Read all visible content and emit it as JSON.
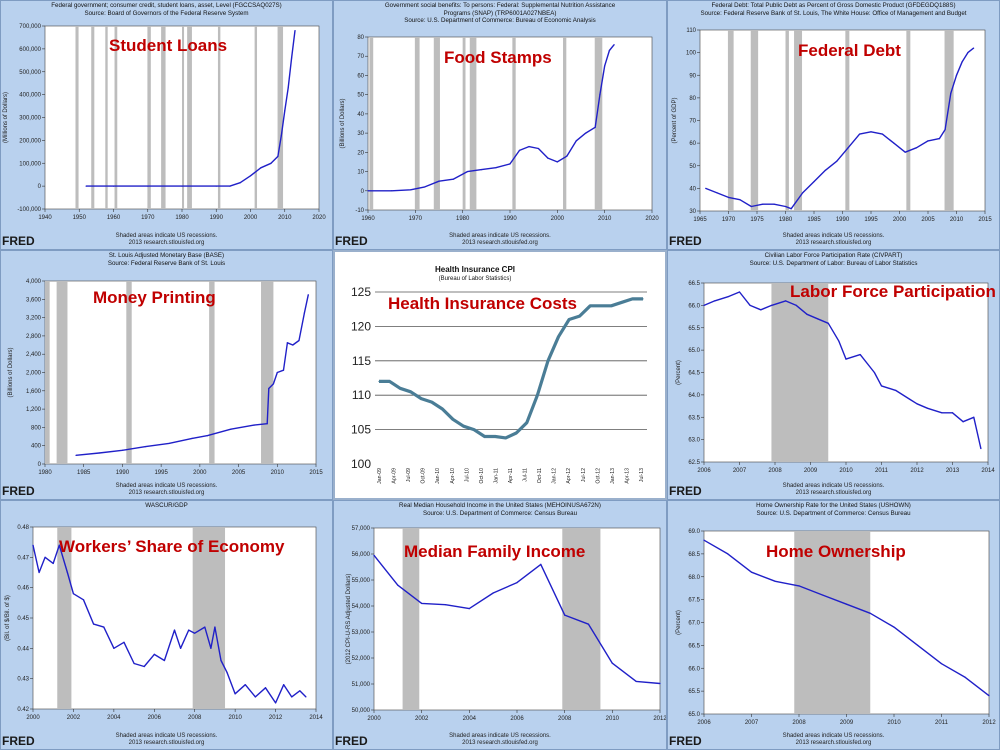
{
  "colors": {
    "line": "#2020c8",
    "plot_bg": "#ffffff",
    "shade": "#bdbdbd",
    "title": "#c00000",
    "hi_line": "#4a7d96"
  },
  "recession_note": "Shaded areas indicate US recessions.",
  "research_note": "2013 research.stlouisfed.org",
  "fred_logo": "FRED",
  "chart_data": [
    {
      "id": "student-loans",
      "type": "line",
      "overlay_title": "Student Loans",
      "header": [
        "Federal government; consumer credit, student loans, asset, Level (FGCCSAQ027S)",
        "Source: Board of Governors of the Federal Reserve System"
      ],
      "ylabel": "(Millions of Dollars)",
      "xlim": [
        1940,
        2020
      ],
      "ylim": [
        -100000,
        700000
      ],
      "xticks": [
        1940,
        1950,
        1960,
        1970,
        1980,
        1990,
        2000,
        2010,
        2020
      ],
      "xtick_labels": [
        "1940",
        "1950",
        "1960",
        "1970",
        "1980",
        "1990",
        "2000",
        "2010",
        "2020"
      ],
      "yticks": [
        -100000,
        0,
        100000,
        200000,
        300000,
        400000,
        500000,
        600000,
        700000
      ],
      "ytick_labels": [
        "-100,000",
        "0",
        "100,000",
        "200,000",
        "300,000",
        "400,000",
        "500,000",
        "600,000",
        "700,000"
      ],
      "recessions": [
        [
          1948.9,
          1949.8
        ],
        [
          1953.5,
          1954.4
        ],
        [
          1957.6,
          1958.3
        ],
        [
          1960.3,
          1961.1
        ],
        [
          1969.9,
          1970.9
        ],
        [
          1973.9,
          1975.2
        ],
        [
          1980.0,
          1980.6
        ],
        [
          1981.5,
          1982.9
        ],
        [
          1990.5,
          1991.2
        ],
        [
          2001.2,
          2001.9
        ],
        [
          2007.9,
          2009.5
        ]
      ],
      "x": [
        1952,
        1960,
        1970,
        1980,
        1990,
        1994,
        1997,
        2000,
        2003,
        2006,
        2008,
        2009,
        2010,
        2011,
        2012,
        2013
      ],
      "y": [
        0,
        0,
        0,
        0,
        0,
        0,
        15000,
        45000,
        80000,
        100000,
        130000,
        220000,
        330000,
        430000,
        560000,
        680000
      ]
    },
    {
      "id": "food-stamps",
      "type": "line",
      "overlay_title": "Food Stamps",
      "header": [
        "Government social benefits: To persons: Federal: Supplemental Nutrition Assistance",
        "Programs (SNAP) (TRP6001A027NBEA)",
        "Source: U.S. Department of Commerce: Bureau of Economic Analysis"
      ],
      "ylabel": "(Billions of Dollars)",
      "xlim": [
        1960,
        2020
      ],
      "ylim": [
        -10,
        80
      ],
      "xticks": [
        1960,
        1970,
        1980,
        1990,
        2000,
        2010,
        2020
      ],
      "xtick_labels": [
        "1960",
        "1970",
        "1980",
        "1990",
        "2000",
        "2010",
        "2020"
      ],
      "yticks": [
        -10,
        0,
        10,
        20,
        30,
        40,
        50,
        60,
        70,
        80
      ],
      "ytick_labels": [
        "-10",
        "0",
        "10",
        "20",
        "30",
        "40",
        "50",
        "60",
        "70",
        "80"
      ],
      "recessions": [
        [
          1960.3,
          1961.1
        ],
        [
          1969.9,
          1970.9
        ],
        [
          1973.9,
          1975.2
        ],
        [
          1980.0,
          1980.6
        ],
        [
          1981.5,
          1982.9
        ],
        [
          1990.5,
          1991.2
        ],
        [
          2001.2,
          2001.9
        ],
        [
          2007.9,
          2009.5
        ]
      ],
      "x": [
        1960,
        1965,
        1969,
        1972,
        1975,
        1978,
        1981,
        1984,
        1987,
        1990,
        1992,
        1994,
        1996,
        1998,
        2000,
        2002,
        2004,
        2006,
        2008,
        2009,
        2010,
        2011,
        2012
      ],
      "y": [
        0,
        0,
        0.5,
        2,
        5,
        6,
        10,
        11,
        12,
        14,
        21,
        23,
        22,
        17,
        15,
        18,
        26,
        30,
        33,
        50,
        65,
        73,
        76
      ]
    },
    {
      "id": "federal-debt",
      "type": "line",
      "overlay_title": "Federal Debt",
      "header": [
        "Federal Debt: Total Public Debt as Percent of Gross Domestic Product (GFDEGDQ188S)",
        "Source: Federal Reserve Bank of St. Louis, The White House: Office of Management and Budget"
      ],
      "ylabel": "(Percent of GDP)",
      "xlim": [
        1965,
        2015
      ],
      "ylim": [
        30,
        110
      ],
      "xticks": [
        1965,
        1970,
        1975,
        1980,
        1985,
        1990,
        1995,
        2000,
        2005,
        2010,
        2015
      ],
      "xtick_labels": [
        "1965",
        "1970",
        "1975",
        "1980",
        "1985",
        "1990",
        "1995",
        "2000",
        "2005",
        "2010",
        "2015"
      ],
      "yticks": [
        30,
        40,
        50,
        60,
        70,
        80,
        90,
        100,
        110
      ],
      "ytick_labels": [
        "30",
        "40",
        "50",
        "60",
        "70",
        "80",
        "90",
        "100",
        "110"
      ],
      "recessions": [
        [
          1969.9,
          1970.9
        ],
        [
          1973.9,
          1975.2
        ],
        [
          1980.0,
          1980.6
        ],
        [
          1981.5,
          1982.9
        ],
        [
          1990.5,
          1991.2
        ],
        [
          2001.2,
          2001.9
        ],
        [
          2007.9,
          2009.5
        ]
      ],
      "x": [
        1966,
        1968,
        1970,
        1972,
        1974,
        1976,
        1978,
        1980,
        1981,
        1983,
        1985,
        1987,
        1989,
        1991,
        1993,
        1995,
        1997,
        1999,
        2001,
        2003,
        2005,
        2007,
        2008,
        2009,
        2010,
        2011,
        2012,
        2013
      ],
      "y": [
        40,
        38,
        36,
        35,
        32,
        33,
        33,
        32,
        31,
        38,
        43,
        48,
        52,
        58,
        64,
        65,
        64,
        60,
        56,
        58,
        61,
        62,
        66,
        82,
        90,
        96,
        100,
        102
      ]
    },
    {
      "id": "money-printing",
      "type": "line",
      "overlay_title": "Money Printing",
      "header": [
        "St. Louis Adjusted Monetary Base (BASE)",
        "Source: Federal Reserve Bank of St. Louis"
      ],
      "ylabel": "(Billions of Dollars)",
      "xlim": [
        1980,
        2015
      ],
      "ylim": [
        0,
        4000
      ],
      "xticks": [
        1980,
        1985,
        1990,
        1995,
        2000,
        2005,
        2010,
        2015
      ],
      "xtick_labels": [
        "1980",
        "1985",
        "1990",
        "1995",
        "2000",
        "2005",
        "2010",
        "2015"
      ],
      "yticks": [
        0,
        400,
        800,
        1200,
        1600,
        2000,
        2400,
        2800,
        3200,
        3600,
        4000
      ],
      "ytick_labels": [
        "0",
        "400",
        "800",
        "1,200",
        "1,600",
        "2,000",
        "2,400",
        "2,800",
        "3,200",
        "3,600",
        "4,000"
      ],
      "recessions": [
        [
          1980.0,
          1980.6
        ],
        [
          1981.5,
          1982.9
        ],
        [
          1990.5,
          1991.2
        ],
        [
          2001.2,
          2001.9
        ],
        [
          2007.9,
          2009.5
        ]
      ],
      "x": [
        1984,
        1987,
        1990,
        1993,
        1996,
        1999,
        2001,
        2004,
        2007,
        2008.7,
        2008.9,
        2009.5,
        2010,
        2010.8,
        2011.3,
        2012,
        2012.8,
        2013.5,
        2014
      ],
      "y": [
        190,
        240,
        300,
        380,
        450,
        560,
        620,
        760,
        850,
        880,
        1650,
        1750,
        2000,
        2050,
        2650,
        2600,
        2700,
        3300,
        3700
      ]
    },
    {
      "id": "health-insurance",
      "type": "line",
      "overlay_title": "Health Insurance Costs",
      "header": [
        "Health Insurance CPI",
        "(Bureau of Labor Statistics)"
      ],
      "ylim": [
        100,
        125
      ],
      "xlim": [
        0,
        50
      ],
      "yticks": [
        100,
        105,
        110,
        115,
        120,
        125
      ],
      "ytick_labels": [
        "100",
        "105",
        "110",
        "115",
        "120",
        "125"
      ],
      "gridlines_at": [
        105,
        110,
        115,
        120,
        125
      ],
      "xticks": [
        0,
        3,
        6,
        9,
        12,
        15,
        18,
        21,
        24,
        27,
        30,
        33,
        36,
        39,
        42,
        45,
        48
      ],
      "xtick_labels": [
        "Jan-09",
        "Apr-09",
        "Jul-09",
        "Oct-09",
        "Jan-10",
        "Apr-10",
        "Jul-10",
        "Oct-10",
        "Jan-11",
        "Apr-11",
        "Jul-11",
        "Oct-11",
        "Jan-12",
        "Apr-12",
        "Jul-12",
        "Oct-12",
        "Jan-13"
      ],
      "xtick_labels_extra": [
        "Apr-13",
        "Jul-13"
      ],
      "x": [
        0,
        2,
        4,
        6,
        8,
        10,
        12,
        14,
        16,
        18,
        20,
        22,
        24,
        26,
        28,
        30,
        32,
        34,
        36,
        38,
        40,
        42,
        44,
        46,
        48,
        50
      ],
      "y": [
        112,
        112,
        111,
        110.5,
        109.5,
        109,
        108,
        106.5,
        105.5,
        105,
        104,
        104,
        103.8,
        104.5,
        106,
        110,
        115,
        118.5,
        121,
        121.5,
        123,
        123,
        123,
        123.5,
        124,
        124
      ]
    },
    {
      "id": "labor-force",
      "type": "line",
      "overlay_title": "Labor Force Participation",
      "header": [
        "Civilian Labor Force Participation Rate (CIVPART)",
        "Source: U.S. Department of Labor: Bureau of Labor Statistics"
      ],
      "ylabel": "(Percent)",
      "xlim": [
        2006,
        2014
      ],
      "ylim": [
        62.5,
        66.5
      ],
      "xticks": [
        2006,
        2007,
        2008,
        2009,
        2010,
        2011,
        2012,
        2013,
        2014
      ],
      "xtick_labels": [
        "2006",
        "2007",
        "2008",
        "2009",
        "2010",
        "2011",
        "2012",
        "2013",
        "2014"
      ],
      "yticks": [
        62.5,
        63.0,
        63.5,
        64.0,
        64.5,
        65.0,
        65.5,
        66.0,
        66.5
      ],
      "ytick_labels": [
        "62.5",
        "63.0",
        "63.5",
        "64.0",
        "64.5",
        "65.0",
        "65.5",
        "66.0",
        "66.5"
      ],
      "recessions": [
        [
          2007.9,
          2009.5
        ]
      ],
      "x": [
        2006,
        2006.3,
        2006.7,
        2007,
        2007.3,
        2007.6,
        2007.9,
        2008.3,
        2008.6,
        2008.9,
        2009.2,
        2009.5,
        2009.8,
        2010,
        2010.4,
        2010.8,
        2011,
        2011.4,
        2011.8,
        2012,
        2012.3,
        2012.7,
        2013,
        2013.3,
        2013.6,
        2013.8
      ],
      "y": [
        66.0,
        66.1,
        66.2,
        66.3,
        66.0,
        65.9,
        66.0,
        66.1,
        66.0,
        65.8,
        65.7,
        65.6,
        65.2,
        64.8,
        64.9,
        64.5,
        64.2,
        64.1,
        63.9,
        63.8,
        63.7,
        63.6,
        63.6,
        63.4,
        63.5,
        62.8
      ]
    },
    {
      "id": "workers-share",
      "type": "line",
      "overlay_title": "Workers’ Share of Economy",
      "header": [
        "WASCUR/GDP"
      ],
      "ylabel": "(Bil. of $/Bil. of $)",
      "xlim": [
        2000,
        2014
      ],
      "ylim": [
        0.42,
        0.48
      ],
      "xticks": [
        2000,
        2002,
        2004,
        2006,
        2008,
        2010,
        2012,
        2014
      ],
      "xtick_labels": [
        "2000",
        "2002",
        "2004",
        "2006",
        "2008",
        "2010",
        "2012",
        "2014"
      ],
      "yticks": [
        0.42,
        0.43,
        0.44,
        0.45,
        0.46,
        0.47,
        0.48
      ],
      "ytick_labels": [
        "0.42",
        "0.43",
        "0.44",
        "0.45",
        "0.46",
        "0.47",
        "0.48"
      ],
      "recessions": [
        [
          2001.2,
          2001.9
        ],
        [
          2007.9,
          2009.5
        ]
      ],
      "x": [
        2000,
        2000.3,
        2000.6,
        2001,
        2001.3,
        2001.7,
        2002,
        2002.5,
        2003,
        2003.5,
        2004,
        2004.5,
        2005,
        2005.5,
        2006,
        2006.5,
        2007,
        2007.3,
        2007.7,
        2008,
        2008.5,
        2008.8,
        2009,
        2009.3,
        2009.6,
        2010,
        2010.5,
        2011,
        2011.5,
        2012,
        2012.4,
        2012.8,
        2013.2,
        2013.5
      ],
      "y": [
        0.474,
        0.465,
        0.47,
        0.468,
        0.474,
        0.465,
        0.458,
        0.456,
        0.448,
        0.447,
        0.44,
        0.442,
        0.435,
        0.434,
        0.438,
        0.436,
        0.446,
        0.44,
        0.446,
        0.445,
        0.447,
        0.44,
        0.447,
        0.436,
        0.432,
        0.425,
        0.428,
        0.424,
        0.427,
        0.422,
        0.428,
        0.424,
        0.426,
        0.424
      ]
    },
    {
      "id": "median-income",
      "type": "line",
      "overlay_title": "Median Family Income",
      "header": [
        "Real Median Household Income in the United States (MEHOINUSA672N)",
        "Source: U.S. Department of Commerce: Census Bureau"
      ],
      "ylabel": "(2012 CPI-U-RS Adjusted Dollars)",
      "xlim": [
        2000,
        2012
      ],
      "ylim": [
        50000,
        57000
      ],
      "xticks": [
        2000,
        2002,
        2004,
        2006,
        2008,
        2010,
        2012
      ],
      "xtick_labels": [
        "2000",
        "2002",
        "2004",
        "2006",
        "2008",
        "2010",
        "2012"
      ],
      "yticks": [
        50000,
        51000,
        52000,
        53000,
        54000,
        55000,
        56000,
        57000
      ],
      "ytick_labels": [
        "50,000",
        "51,000",
        "52,000",
        "53,000",
        "54,000",
        "55,000",
        "56,000",
        "57,000"
      ],
      "recessions": [
        [
          2001.2,
          2001.9
        ],
        [
          2007.9,
          2009.5
        ]
      ],
      "x": [
        2000,
        2001,
        2002,
        2003,
        2004,
        2005,
        2006,
        2007,
        2008,
        2009,
        2010,
        2011,
        2012
      ],
      "y": [
        55950,
        54800,
        54100,
        54050,
        53900,
        54500,
        54900,
        55600,
        53650,
        53300,
        51800,
        51100,
        51020
      ]
    },
    {
      "id": "home-ownership",
      "type": "line",
      "overlay_title": "Home Ownership",
      "header": [
        "Home Ownership Rate for the United States (USHOWN)",
        "Source: U.S. Department of Commerce: Census Bureau"
      ],
      "ylabel": "(Percent)",
      "xlim": [
        2006,
        2012
      ],
      "ylim": [
        65.0,
        69.0
      ],
      "xticks": [
        2006,
        2007,
        2008,
        2009,
        2010,
        2011,
        2012
      ],
      "xtick_labels": [
        "2006",
        "2007",
        "2008",
        "2009",
        "2010",
        "2011",
        "2012"
      ],
      "yticks": [
        65.0,
        65.5,
        66.0,
        66.5,
        67.0,
        67.5,
        68.0,
        68.5,
        69.0
      ],
      "ytick_labels": [
        "65.0",
        "65.5",
        "66.0",
        "66.5",
        "67.0",
        "67.5",
        "68.0",
        "68.5",
        "69.0"
      ],
      "recessions": [
        [
          2007.9,
          2009.5
        ]
      ],
      "x": [
        2006,
        2006.5,
        2007,
        2007.5,
        2008,
        2008.5,
        2009,
        2009.5,
        2010,
        2010.5,
        2011,
        2011.5,
        2012
      ],
      "y": [
        68.8,
        68.5,
        68.1,
        67.9,
        67.8,
        67.6,
        67.4,
        67.2,
        66.9,
        66.5,
        66.1,
        65.8,
        65.4
      ]
    }
  ]
}
